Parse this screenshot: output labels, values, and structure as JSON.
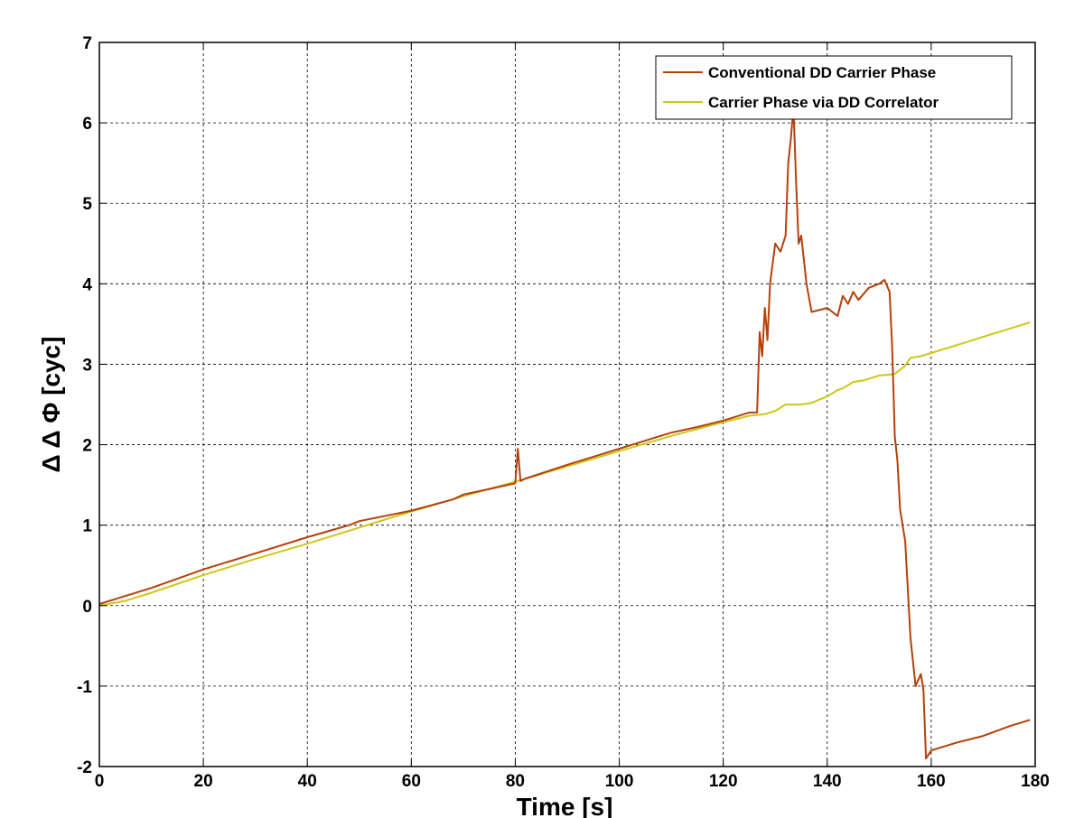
{
  "chart_data": {
    "type": "line",
    "title": "",
    "xlabel": "Time [s]",
    "ylabel": "Δ Δ Φ [cyc]",
    "xlim": [
      0,
      180
    ],
    "ylim": [
      -2,
      7
    ],
    "xticks": [
      0,
      20,
      40,
      60,
      80,
      100,
      120,
      140,
      160,
      180
    ],
    "yticks": [
      -2,
      -1,
      0,
      1,
      2,
      3,
      4,
      5,
      6,
      7
    ],
    "xtick_labels": [
      "0",
      "20",
      "40",
      "60",
      "80",
      "100",
      "120",
      "140",
      "160",
      "180"
    ],
    "ytick_labels": [
      "-2",
      "-1",
      "0",
      "1",
      "2",
      "3",
      "4",
      "5",
      "6",
      "7"
    ],
    "grid": true,
    "legend_position": "top-right",
    "series": [
      {
        "name": "Conventional DD Carrier Phase",
        "color": "#b5400a",
        "x": [
          0,
          5,
          10,
          20,
          30,
          40,
          48,
          50,
          60,
          68,
          70,
          75,
          80,
          80.5,
          81,
          82,
          90,
          95,
          100,
          105,
          110,
          115,
          120,
          125,
          126.5,
          127,
          127.5,
          128,
          128.5,
          129,
          130,
          131,
          132,
          132.5,
          133,
          133.5,
          134,
          134.5,
          135,
          136,
          137,
          140,
          142,
          143,
          144,
          145,
          146,
          148,
          150,
          151,
          152,
          152.5,
          153,
          153.5,
          154,
          155,
          156,
          157,
          158,
          158.5,
          159,
          160,
          165,
          170,
          175,
          179
        ],
        "y": [
          0.02,
          0.12,
          0.22,
          0.45,
          0.65,
          0.85,
          1.0,
          1.05,
          1.18,
          1.32,
          1.38,
          1.45,
          1.52,
          1.95,
          1.55,
          1.58,
          1.75,
          1.85,
          1.95,
          2.05,
          2.15,
          2.22,
          2.3,
          2.4,
          2.4,
          3.4,
          3.1,
          3.7,
          3.3,
          4.0,
          4.5,
          4.4,
          4.6,
          5.5,
          5.8,
          6.2,
          5.3,
          4.5,
          4.6,
          4.0,
          3.65,
          3.7,
          3.6,
          3.85,
          3.75,
          3.9,
          3.8,
          3.95,
          4.0,
          4.05,
          3.9,
          3.2,
          2.1,
          1.8,
          1.2,
          0.8,
          -0.4,
          -1.0,
          -0.85,
          -1.05,
          -1.9,
          -1.8,
          -1.7,
          -1.62,
          -1.5,
          -1.42
        ]
      },
      {
        "name": "Carrier Phase via DD Correlator",
        "color": "#cdc71b",
        "x": [
          0,
          5,
          10,
          20,
          30,
          40,
          50,
          60,
          70,
          80,
          90,
          100,
          110,
          120,
          125,
          128,
          130,
          132,
          135,
          137,
          140,
          142,
          143,
          145,
          147,
          150,
          152,
          153,
          155,
          156,
          158,
          160,
          165,
          170,
          175,
          179
        ],
        "y": [
          0.0,
          0.06,
          0.16,
          0.38,
          0.58,
          0.77,
          0.97,
          1.17,
          1.36,
          1.54,
          1.73,
          1.92,
          2.11,
          2.28,
          2.36,
          2.38,
          2.42,
          2.5,
          2.5,
          2.52,
          2.6,
          2.68,
          2.7,
          2.78,
          2.8,
          2.86,
          2.87,
          2.88,
          2.98,
          3.08,
          3.1,
          3.14,
          3.24,
          3.34,
          3.44,
          3.52
        ]
      }
    ]
  }
}
